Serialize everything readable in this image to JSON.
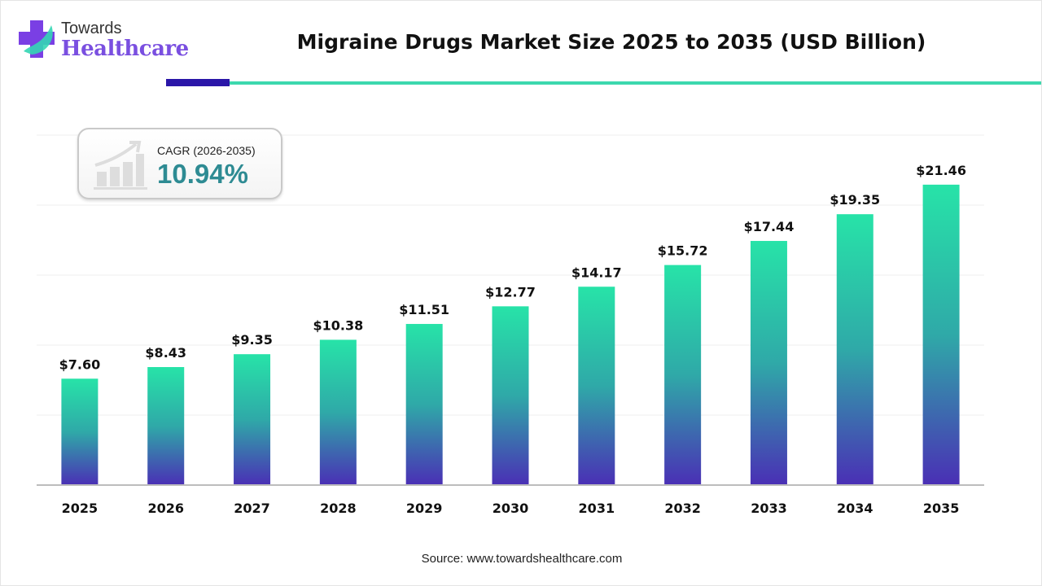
{
  "logo": {
    "line1": "Towards",
    "line2": "Healthcare"
  },
  "title": "Migraine Drugs Market Size 2025 to 2035 (USD Billion)",
  "cagr": {
    "label": "CAGR (2026-2035)",
    "value": "10.94%",
    "icon": "growth-chart-icon"
  },
  "source": "Source: www.towardshealthcare.com",
  "colors": {
    "bar_top": "#27e3a8",
    "bar_bottom": "#4a2fb5",
    "accent_dark": "#2a16a8",
    "accent_teal": "#3dd8ae",
    "cagr_value": "#2e8b93",
    "logo": "#7a4fe0"
  },
  "chart_data": {
    "type": "bar",
    "title": "Migraine Drugs Market Size 2025 to 2035 (USD Billion)",
    "categories": [
      "2025",
      "2026",
      "2027",
      "2028",
      "2029",
      "2030",
      "2031",
      "2032",
      "2033",
      "2034",
      "2035"
    ],
    "values": [
      7.6,
      8.43,
      9.35,
      10.38,
      11.51,
      12.77,
      14.17,
      15.72,
      17.44,
      19.35,
      21.46
    ],
    "labels": [
      "$7.60",
      "$8.43",
      "$9.35",
      "$10.38",
      "$11.51",
      "$12.77",
      "$14.17",
      "$15.72",
      "$17.44",
      "$19.35",
      "$21.46"
    ],
    "xlabel": "",
    "ylabel": "",
    "ylim": [
      0,
      25
    ],
    "grid": true,
    "y_tick_labels_shown": false
  }
}
